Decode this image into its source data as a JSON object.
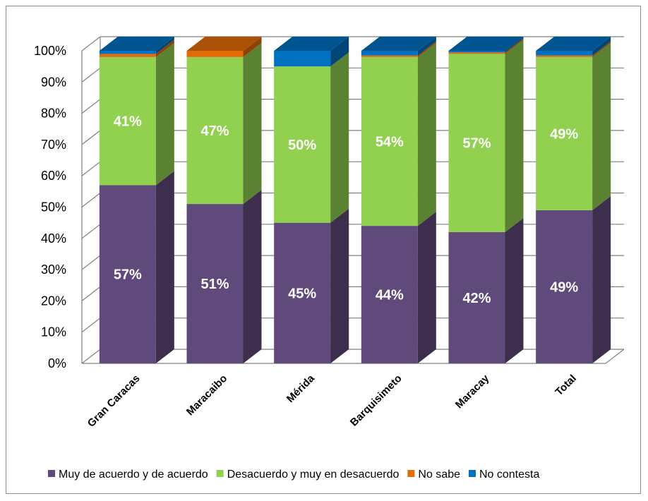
{
  "chart_data": {
    "type": "bar",
    "stacked": true,
    "percent_stacked": true,
    "three_d": true,
    "categories": [
      "Gran Caracas",
      "Maracaibo",
      "Mérida",
      "Barquisimeto",
      "Maracay",
      "Total"
    ],
    "series": [
      {
        "name": "Muy de acuerdo y de acuerdo",
        "color": "#604A7B",
        "values": [
          57,
          51,
          45,
          44,
          42,
          49
        ],
        "labels": [
          "57%",
          "51%",
          "45%",
          "44%",
          "42%",
          "49%"
        ]
      },
      {
        "name": "Desacuerdo y muy en desacuerdo",
        "color": "#92D050",
        "values": [
          41,
          47,
          50,
          54,
          57,
          49
        ],
        "labels": [
          "41%",
          "47%",
          "50%",
          "54%",
          "57%",
          "49%"
        ]
      },
      {
        "name": "No sabe",
        "color": "#E36C09",
        "values": [
          1,
          2,
          0,
          0.5,
          0.5,
          0.5
        ],
        "labels": [
          "",
          "",
          "",
          "",
          "",
          ""
        ]
      },
      {
        "name": "No contesta",
        "color": "#0070C0",
        "values": [
          1,
          0,
          5,
          1.5,
          0.5,
          1.5
        ],
        "labels": [
          "",
          "",
          "",
          "",
          "",
          ""
        ]
      }
    ],
    "y_ticks": [
      "0%",
      "10%",
      "20%",
      "30%",
      "40%",
      "50%",
      "60%",
      "70%",
      "80%",
      "90%",
      "100%"
    ],
    "ylim": [
      0,
      100
    ],
    "grid": true,
    "legend_position": "bottom",
    "title": "",
    "xlabel": "",
    "ylabel": ""
  }
}
